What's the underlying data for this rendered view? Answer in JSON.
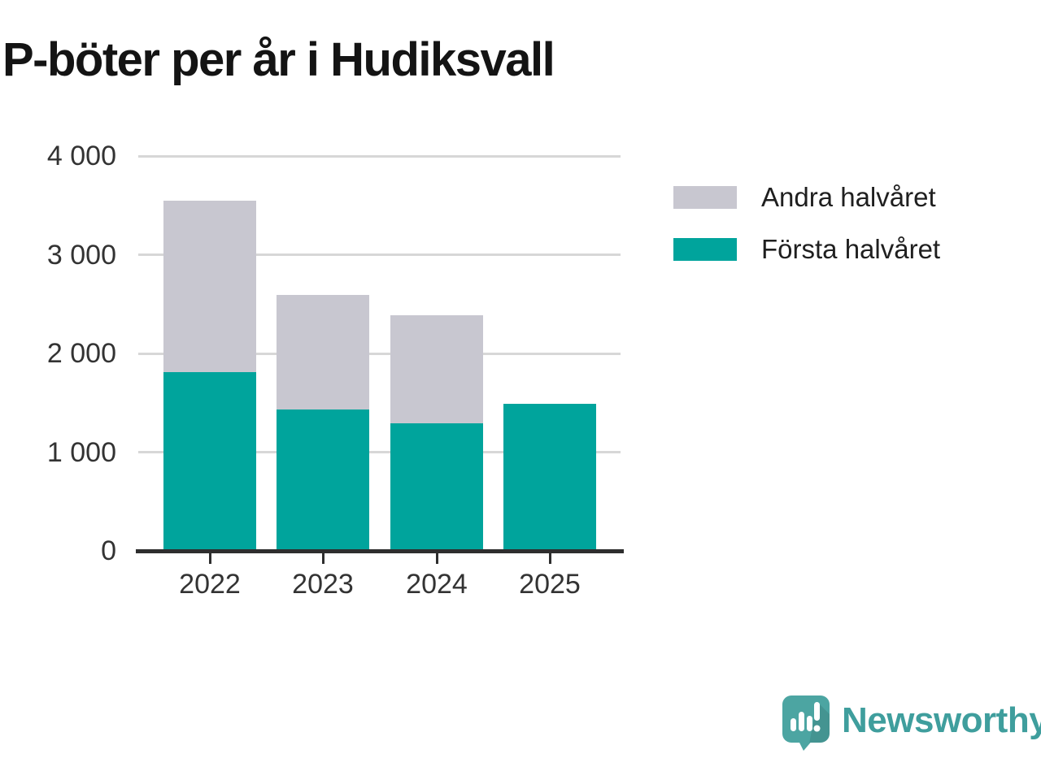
{
  "chart_data": {
    "type": "bar",
    "stacked": true,
    "title": "P-böter per år i Hudiksvall",
    "categories": [
      "2022",
      "2023",
      "2024",
      "2025"
    ],
    "series": [
      {
        "name": "Första halvåret",
        "color": "#00a49c",
        "values": [
          1810,
          1430,
          1290,
          1490
        ]
      },
      {
        "name": "Andra halvåret",
        "color": "#c8c7d0",
        "values": [
          1740,
          1160,
          1100,
          0
        ]
      }
    ],
    "totals": [
      3550,
      2590,
      2390,
      1490
    ],
    "xlabel": "",
    "ylabel": "",
    "ylim": [
      0,
      4000
    ],
    "yticks": [
      0,
      1000,
      2000,
      3000,
      4000
    ],
    "ytick_labels": [
      "0",
      "1 000",
      "2 000",
      "3 000",
      "4 000"
    ],
    "grid": true,
    "legend_position": "right"
  },
  "legend": {
    "items": [
      {
        "label": "Andra halvåret",
        "color": "#c8c7d0"
      },
      {
        "label": "Första halvåret",
        "color": "#00a49c"
      }
    ]
  },
  "brand": {
    "name": "Newsworthy",
    "icon": "speech-bubble-with-bar-chart-and-exclamation",
    "icon_color": "#4ca5a2",
    "text_color": "#3f9e9d"
  },
  "colors": {
    "teal": "#00a49c",
    "gray": "#c8c7d0",
    "grid": "#d7d7d7",
    "axis": "#2e2e2e",
    "tick_label": "#333333",
    "title": "#141414"
  }
}
